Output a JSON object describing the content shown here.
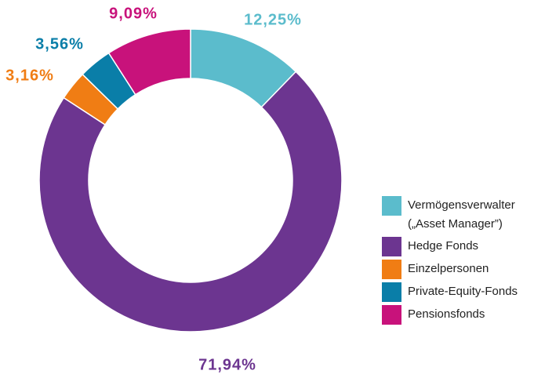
{
  "chart_data": {
    "type": "donut",
    "categories": [
      "Vermögensverwalter („Asset Manager”)",
      "Hedge Fonds",
      "Einzelpersonen",
      "Private-Equity-Fonds",
      "Pensionsfonds"
    ],
    "values": [
      12.25,
      71.94,
      3.16,
      3.56,
      9.09
    ],
    "value_labels": [
      "12,25%",
      "71,94%",
      "3,16%",
      "3,56%",
      "9,09%"
    ],
    "colors": [
      "#5bbccc",
      "#6c3590",
      "#f07d14",
      "#0a7ea8",
      "#c8127b"
    ]
  }
}
